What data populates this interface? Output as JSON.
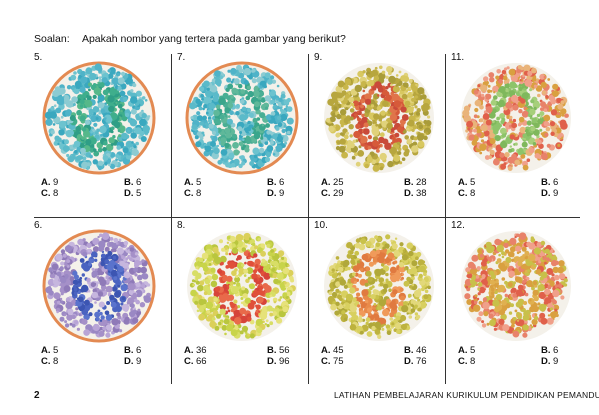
{
  "header": {
    "label": "Soalan:",
    "question": "Apakah nombor yang tertera pada gambar yang berikut?"
  },
  "plates": [
    {
      "number": "5.",
      "options": [
        {
          "l": "A.",
          "v": "9"
        },
        {
          "l": "B.",
          "v": "6"
        },
        {
          "l": "C.",
          "v": "8"
        },
        {
          "l": "D.",
          "v": "5"
        }
      ],
      "colors": {
        "bg": [
          "#4fb3c8",
          "#6cc3cf",
          "#3aa8bf",
          "#8ccbd2",
          "#5bbac9"
        ],
        "fig": [
          "#3fae8c",
          "#56b88a",
          "#2f9e86"
        ],
        "ring": "#e38a52"
      }
    },
    {
      "number": "7.",
      "options": [
        {
          "l": "A.",
          "v": "5"
        },
        {
          "l": "B.",
          "v": "6"
        },
        {
          "l": "C.",
          "v": "8"
        },
        {
          "l": "D.",
          "v": "9"
        }
      ],
      "colors": {
        "bg": [
          "#4fb3c8",
          "#6cc3cf",
          "#3aa8bf",
          "#8ccbd2",
          "#5bbac9"
        ],
        "fig": [
          "#49ae94",
          "#5fb89a",
          "#3aa68c"
        ],
        "ring": "#e38a52"
      }
    },
    {
      "number": "9.",
      "options": [
        {
          "l": "A.",
          "v": "25"
        },
        {
          "l": "B.",
          "v": "28"
        },
        {
          "l": "C.",
          "v": "29"
        },
        {
          "l": "D.",
          "v": "38"
        }
      ],
      "colors": {
        "bg": [
          "#c8b64a",
          "#d8c860",
          "#b7a63e",
          "#e0d27a",
          "#a99c3a"
        ],
        "fig": [
          "#d65a3a",
          "#e0744a",
          "#c94a3a"
        ],
        "ring": "none"
      }
    },
    {
      "number": "11.",
      "options": [
        {
          "l": "A.",
          "v": "5"
        },
        {
          "l": "B.",
          "v": "6"
        },
        {
          "l": "C.",
          "v": "8"
        },
        {
          "l": "D.",
          "v": "9"
        }
      ],
      "colors": {
        "bg": [
          "#e0604a",
          "#e8826a",
          "#d9a040",
          "#e9b47a",
          "#f0a08a"
        ],
        "fig": [
          "#8dc46a",
          "#a6cf7a",
          "#7fb85c"
        ],
        "ring": "none"
      }
    },
    {
      "number": "6.",
      "options": [
        {
          "l": "A.",
          "v": "5"
        },
        {
          "l": "B.",
          "v": "6"
        },
        {
          "l": "C.",
          "v": "8"
        },
        {
          "l": "D.",
          "v": "9"
        }
      ],
      "colors": {
        "bg": [
          "#a590c8",
          "#b8a4d6",
          "#8f7ab8",
          "#c6b6de",
          "#9a88c4"
        ],
        "fig": [
          "#4a63c0",
          "#5a73cc",
          "#3c55b2"
        ],
        "ring": "#e38a52"
      }
    },
    {
      "number": "8.",
      "options": [
        {
          "l": "A.",
          "v": "36"
        },
        {
          "l": "B.",
          "v": "56"
        },
        {
          "l": "C.",
          "v": "66"
        },
        {
          "l": "D.",
          "v": "96"
        }
      ],
      "colors": {
        "bg": [
          "#c8d44a",
          "#d8de66",
          "#e6e27a",
          "#b9c63e",
          "#dbd05a"
        ],
        "fig": [
          "#e0503a",
          "#e86a4a",
          "#d6443a"
        ],
        "ring": "none"
      }
    },
    {
      "number": "10.",
      "options": [
        {
          "l": "A.",
          "v": "45"
        },
        {
          "l": "B.",
          "v": "46"
        },
        {
          "l": "C.",
          "v": "75"
        },
        {
          "l": "D.",
          "v": "76"
        }
      ],
      "colors": {
        "bg": [
          "#c9c24a",
          "#d8d060",
          "#bdb23e",
          "#e2d87a",
          "#b0a83a"
        ],
        "fig": [
          "#e88a4a",
          "#f09a5a",
          "#e07a40"
        ],
        "ring": "none"
      }
    },
    {
      "number": "12.",
      "options": [
        {
          "l": "A.",
          "v": "5"
        },
        {
          "l": "B.",
          "v": "6"
        },
        {
          "l": "C.",
          "v": "8"
        },
        {
          "l": "D.",
          "v": "9"
        }
      ],
      "colors": {
        "bg": [
          "#e0604a",
          "#e8826a",
          "#d9a040",
          "#c8c04a",
          "#f0a08a"
        ],
        "fig": [
          "#d9a040",
          "#c8c04a",
          "#e0b050"
        ],
        "ring": "none"
      }
    }
  ],
  "footer": {
    "page_number": "2",
    "title": "LATIHAN PEMBELAJARAN KURIKULUM PENDIDIKAN PEMANDU"
  }
}
